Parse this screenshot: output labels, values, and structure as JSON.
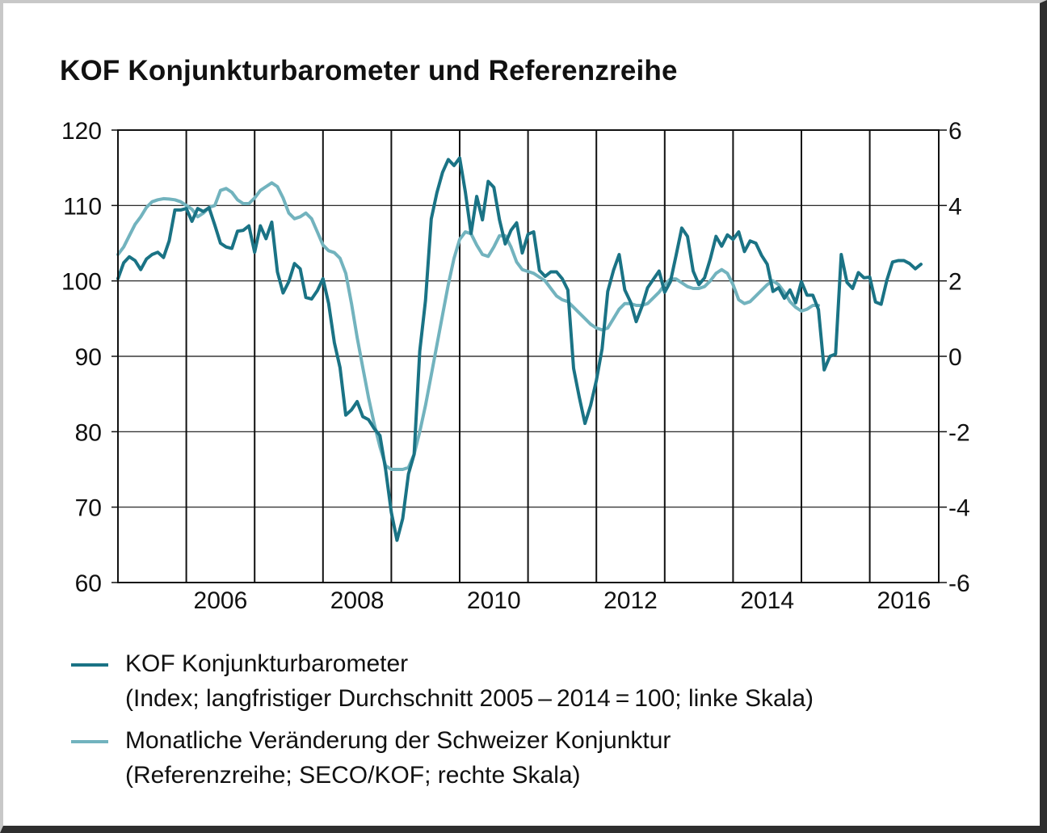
{
  "chart_data": {
    "type": "line",
    "title": "KOF Konjunkturbarometer und Referenzreihe",
    "x_ticks": [
      "2006",
      "2008",
      "2010",
      "2012",
      "2014",
      "2016"
    ],
    "ylim_left": [
      60,
      120
    ],
    "yticks_left": [
      "120",
      "110",
      "100",
      "90",
      "80",
      "70",
      "60"
    ],
    "ylim_right": [
      -6,
      6
    ],
    "yticks_right": [
      "6",
      "4",
      "2",
      "0",
      "-2",
      "-4",
      "-6"
    ],
    "x_start": "2005-01",
    "grid": "vertical at year starts, horizontal at left-axis ticks",
    "series": [
      {
        "name": "KOF Konjunkturbarometer",
        "subtitle": "(Index; langfristiger Durchschnitt 2005 – 2014 = 100; linke Skala)",
        "axis": "left",
        "color": "#1a7385",
        "values": [
          100.3,
          102.4,
          103.2,
          102.7,
          101.5,
          102.9,
          103.5,
          103.8,
          103.1,
          105.3,
          109.4,
          109.4,
          109.6,
          107.9,
          109.6,
          109.2,
          109.7,
          107.4,
          105,
          104.5,
          104.3,
          106.6,
          106.7,
          107.3,
          103.8,
          107.3,
          105.6,
          107.8,
          101.2,
          98.4,
          99.9,
          102.3,
          101.6,
          97.8,
          97.6,
          98.7,
          100.3,
          97,
          91.8,
          88.5,
          82.2,
          82.9,
          84,
          82,
          81.6,
          80.4,
          79.5,
          75,
          69.3,
          65.6,
          68.5,
          74.4,
          77,
          90.7,
          97.4,
          108.2,
          111.7,
          114.4,
          116.1,
          115.3,
          116.3,
          111.8,
          106.3,
          111.2,
          108.1,
          113.2,
          112.4,
          108.1,
          104.9,
          106.7,
          107.7,
          103.7,
          106.2,
          106.5,
          101.4,
          100.6,
          101.2,
          101.2,
          100.3,
          98.8,
          88.4,
          84.6,
          81.1,
          83.5,
          86.8,
          91,
          98.6,
          101.4,
          103.5,
          98.8,
          97.2,
          94.6,
          96.6,
          99.1,
          100.2,
          101.3,
          98.5,
          99.9,
          103.4,
          107,
          105.9,
          101.3,
          99.5,
          100.4,
          102.9,
          105.9,
          104.6,
          106.1,
          105.5,
          106.5,
          103.9,
          105.3,
          105,
          103.4,
          102.2,
          98.6,
          99.1,
          97.7,
          98.8,
          97.1,
          99.9,
          98.1,
          98.1,
          96.2,
          88.2,
          90,
          90.3,
          103.5,
          99.8,
          99,
          101.1,
          100.4,
          100.5,
          97.2,
          96.9,
          100.1,
          102.5,
          102.7,
          102.7,
          102.3,
          101.6,
          102.2
        ]
      },
      {
        "name": "Monatliche Veränderung der Schweizer Konjunktur",
        "subtitle": "(Referenzreihe; SECO/KOF; rechte Skala)",
        "axis": "right",
        "color": "#72b3be",
        "values": [
          2.7,
          2.9,
          3.2,
          3.5,
          3.7,
          3.95,
          4.1,
          4.15,
          4.18,
          4.17,
          4.15,
          4.1,
          4.0,
          3.9,
          3.7,
          3.8,
          3.95,
          4.0,
          4.4,
          4.45,
          4.35,
          4.15,
          4.05,
          4.05,
          4.2,
          4.4,
          4.5,
          4.6,
          4.5,
          4.2,
          3.8,
          3.65,
          3.7,
          3.8,
          3.65,
          3.3,
          2.95,
          2.8,
          2.75,
          2.6,
          2.2,
          1.4,
          0.5,
          -0.3,
          -1.1,
          -1.8,
          -2.4,
          -2.9,
          -3.0,
          -3.0,
          -3.0,
          -2.95,
          -2.6,
          -2.0,
          -1.3,
          -0.5,
          0.3,
          1.1,
          1.9,
          2.6,
          3.1,
          3.3,
          3.25,
          2.95,
          2.7,
          2.65,
          2.9,
          3.2,
          3.2,
          2.9,
          2.5,
          2.3,
          2.25,
          2.2,
          2.1,
          2.0,
          1.8,
          1.6,
          1.5,
          1.45,
          1.3,
          1.15,
          1.0,
          0.85,
          0.75,
          0.7,
          0.75,
          1.0,
          1.25,
          1.4,
          1.4,
          1.35,
          1.35,
          1.4,
          1.55,
          1.7,
          1.9,
          2.05,
          2.05,
          1.95,
          1.85,
          1.8,
          1.8,
          1.85,
          2.0,
          2.2,
          2.3,
          2.2,
          1.9,
          1.5,
          1.4,
          1.45,
          1.6,
          1.75,
          1.9,
          2.0,
          1.9,
          1.7,
          1.45,
          1.3,
          1.2,
          1.25,
          1.35,
          1.35
        ]
      }
    ]
  }
}
